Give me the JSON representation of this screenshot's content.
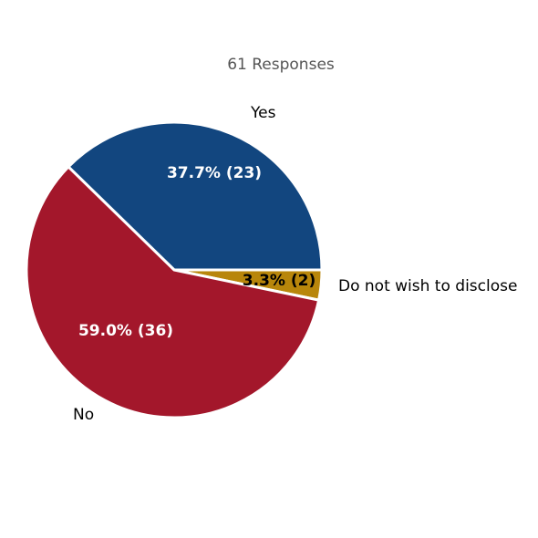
{
  "chart_data": {
    "type": "pie",
    "title": "61 Responses",
    "total": 61,
    "slices": [
      {
        "label": "Yes",
        "value": 23,
        "percent": 37.7,
        "data_label": "37.7% (23)",
        "color": "#12467f",
        "label_color": "#ffffff"
      },
      {
        "label": "Do not wish to disclose",
        "value": 2,
        "percent": 3.3,
        "data_label": "3.3% (2)",
        "color": "#b8860b",
        "label_color": "#000000"
      },
      {
        "label": "No",
        "value": 36,
        "percent": 59.0,
        "data_label": "59.0% (36)",
        "color": "#a3172b",
        "label_color": "#ffffff"
      }
    ],
    "start_angle_deg": 0,
    "direction": "clockwise",
    "legend": "none"
  }
}
